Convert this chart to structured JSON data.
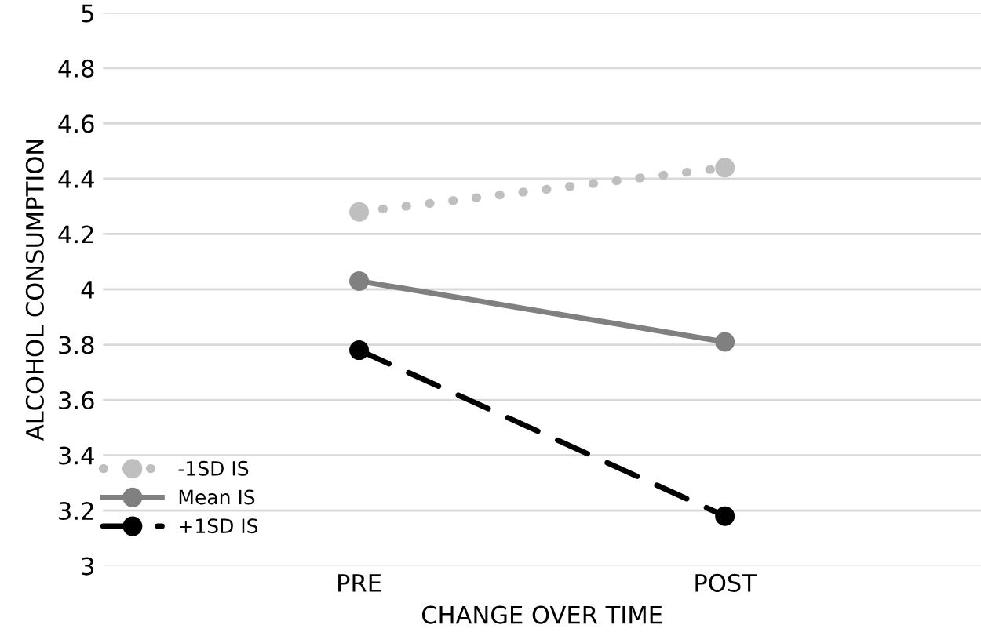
{
  "chart_data": {
    "type": "line",
    "xlabel": "CHANGE OVER TIME",
    "ylabel": "ALCOHOL CONSUMPTION",
    "categories": [
      "PRE",
      "POST"
    ],
    "series": [
      {
        "name": "-1SD IS",
        "color": "#bfbfbf",
        "values": [
          4.28,
          4.44
        ],
        "line_style": "dotted"
      },
      {
        "name": "Mean IS",
        "color": "#808080",
        "values": [
          4.03,
          3.81
        ],
        "line_style": "solid"
      },
      {
        "name": "+1SD IS",
        "color": "#000000",
        "values": [
          3.78,
          3.18
        ],
        "line_style": "dashed"
      }
    ],
    "ylim": [
      3,
      5
    ],
    "yticks": [
      3,
      3.2,
      3.4,
      3.6,
      3.8,
      4,
      4.2,
      4.4,
      4.6,
      4.8,
      5
    ],
    "grid": "y",
    "legend": "bottom left",
    "marker": "circle"
  }
}
